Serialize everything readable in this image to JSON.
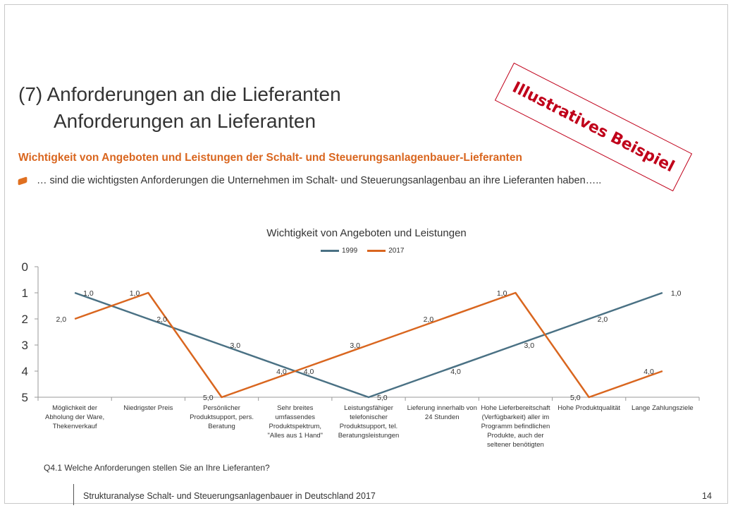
{
  "header": {
    "title_line1": "(7)  Anforderungen an die Lieferanten",
    "title_line2": "Anforderungen an Lieferanten",
    "subtitle": "Wichtigkeit von Angeboten und Leistungen der Schalt- und Steuerungsanlagenbauer-Lieferanten",
    "bullet_text": "… sind die wichtigsten Anforderungen die Unternehmen im Schalt- und Steuerungsanlagenbau an ihre Lieferanten haben….."
  },
  "stamp": {
    "text": "Illustratives Beispiel",
    "color": "#c0001a"
  },
  "chart_data": {
    "type": "line",
    "title": "Wichtigkeit von Angeboten und Leistungen",
    "categories": [
      "Möglichkeit der Abholung der Ware, Thekenverkauf",
      "Niedrigster Preis",
      "Persönlicher Produktsupport, pers. Beratung",
      "Sehr breites umfassendes Produktspektrum, \"Alles aus 1 Hand\"",
      "Leistungsfähiger telefonischer Produktsupport, tel. Beratungsleistungen",
      "Lieferung innerhalb von 24 Stunden",
      "Hohe Lieferbereitschaft (Verfügbarkeit) aller im Programm befindlichen Produkte, auch der seltener benötigten",
      "Hohe Produktqualität",
      "Lange Zahlungsziele"
    ],
    "category_lines": [
      [
        "Möglichkeit der",
        "Abholung der Ware,",
        "Thekenverkauf"
      ],
      [
        "Niedrigster Preis"
      ],
      [
        "Persönlicher",
        "Produktsupport, pers.",
        "Beratung"
      ],
      [
        "Sehr breites",
        "umfassendes",
        "Produktspektrum,",
        "\"Alles aus 1 Hand\""
      ],
      [
        "Leistungsfähiger",
        "telefonischer",
        "Produktsupport, tel.",
        "Beratungsleistungen"
      ],
      [
        "Lieferung innerhalb von",
        "24 Stunden"
      ],
      [
        "Hohe Lieferbereitschaft",
        "(Verfügbarkeit) aller im",
        "Programm befindlichen",
        "Produkte, auch der",
        "seltener benötigten"
      ],
      [
        "Hohe Produktqualität"
      ],
      [
        "Lange Zahlungsziele"
      ]
    ],
    "series": [
      {
        "name": "1999",
        "color": "#4a7184",
        "values": [
          1,
          2,
          3,
          4,
          5,
          4,
          3,
          2,
          1
        ],
        "labels": [
          "1,0",
          "2,0",
          "3,0",
          "4,0",
          "5,0",
          "4,0",
          "3,0",
          "2,0",
          "1,0"
        ]
      },
      {
        "name": "2017",
        "color": "#d9661f",
        "values": [
          2,
          1,
          5,
          4,
          3,
          2,
          1,
          5,
          4
        ],
        "labels": [
          "2,0",
          "1,0",
          "5,0",
          "4,0",
          "3,0",
          "2,0",
          "1,0",
          "5,0",
          "4,0"
        ]
      }
    ],
    "y_ticks": [
      "0",
      "1",
      "2",
      "3",
      "4",
      "5"
    ],
    "ylim": [
      0,
      5
    ],
    "y_reversed": true,
    "grid": false,
    "legend_position": "top-center"
  },
  "footnote": "Q4.1 Welche Anforderungen stellen Sie an Ihre Lieferanten?",
  "footer": {
    "text": "Strukturanalyse  Schalt- und Steuerungsanlagenbauer in Deutschland 2017",
    "page": "14"
  }
}
